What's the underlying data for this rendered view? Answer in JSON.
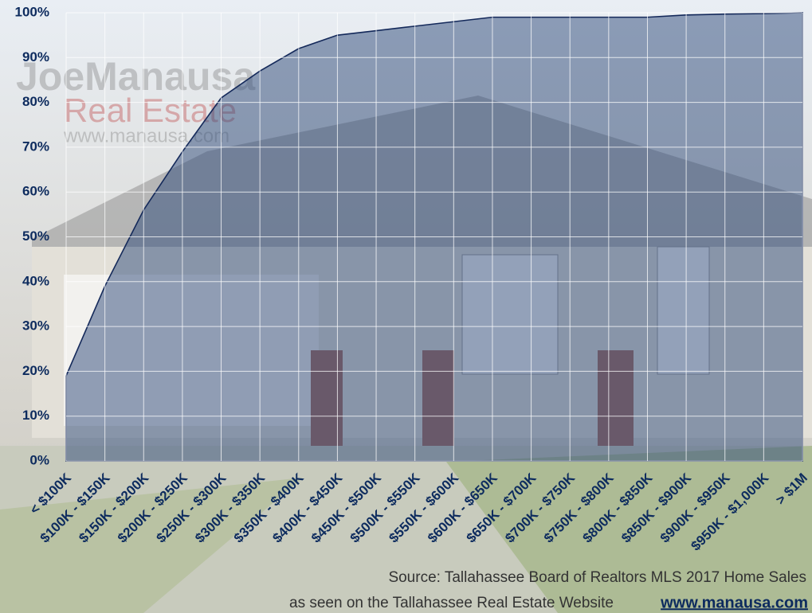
{
  "chart_data": {
    "type": "area",
    "categories": [
      "< $100K",
      "$100K - $150K",
      "$150K - $200K",
      "$200K - $250K",
      "$250K - $300K",
      "$300K - $350K",
      "$350K - $400K",
      "$400K - $450K",
      "$450K - $500K",
      "$500K - $550K",
      "$550K - $600K",
      "$600K - $650K",
      "$650K - $700K",
      "$700K - $750K",
      "$750K - $800K",
      "$800K - $850K",
      "$850K - $900K",
      "$900K - $950K",
      "$950K - $1,000K",
      "> $1M"
    ],
    "values": [
      19,
      39,
      56,
      69,
      81,
      87,
      92,
      95,
      96,
      97,
      98,
      99,
      99,
      99,
      99,
      99,
      99.5,
      99.7,
      99.8,
      100
    ],
    "color": "#2e4a7a",
    "ylim": [
      0,
      100
    ],
    "yticks": [
      {
        "value": 0,
        "label": "0%"
      },
      {
        "value": 10,
        "label": "10%"
      },
      {
        "value": 20,
        "label": "20%"
      },
      {
        "value": 30,
        "label": "30%"
      },
      {
        "value": 40,
        "label": "40%"
      },
      {
        "value": 50,
        "label": "50%"
      },
      {
        "value": 60,
        "label": "60%"
      },
      {
        "value": 70,
        "label": "70%"
      },
      {
        "value": 80,
        "label": "80%"
      },
      {
        "value": 90,
        "label": "90%"
      },
      {
        "value": 100,
        "label": "100%"
      }
    ],
    "grid": true,
    "watermark": [
      "JoeManausa",
      "Real Estate",
      "www.manausa.com"
    ],
    "source": [
      "Source: Tallahassee Board of Realtors MLS 2017 Home Sales",
      "as seen on the Tallahassee Real Estate Website",
      "www.manausa.com"
    ]
  }
}
